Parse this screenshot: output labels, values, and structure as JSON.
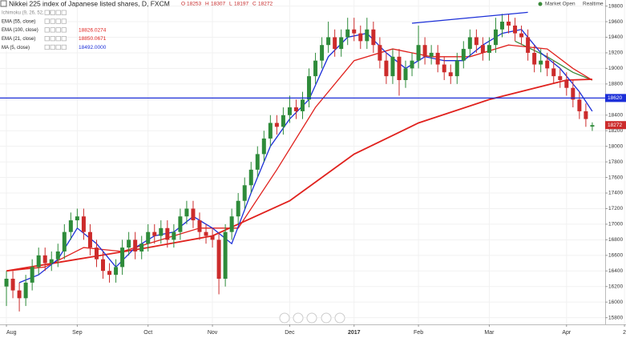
{
  "chart_data": {
    "type": "candlestick",
    "title": "Nikkei 225 index of Japanese listed shares, D, FXCM",
    "ohlc_prefixes": [
      "O",
      "H",
      "L",
      "C"
    ],
    "status": [
      "Market Open",
      "Realtime"
    ],
    "legend_only": [
      "Ichimoku (9, 26, 52, 26)"
    ],
    "up_color": "#2e8b3a",
    "down_color": "#cc2b2b",
    "grid": true,
    "xlim": [
      -1,
      93
    ],
    "ylim": [
      15714,
      19878
    ],
    "yticks": [
      15800,
      16000,
      16200,
      16400,
      16600,
      16800,
      17000,
      17200,
      17400,
      17600,
      17800,
      18000,
      18200,
      18400,
      18600,
      18800,
      19000,
      19200,
      19400,
      19600,
      19800
    ],
    "xticks": [
      {
        "value": 0,
        "label": "Aug"
      },
      {
        "value": 11,
        "label": "Sep"
      },
      {
        "value": 22,
        "label": "Oct"
      },
      {
        "value": 32,
        "label": "Nov"
      },
      {
        "value": 44,
        "label": "Dec"
      },
      {
        "value": 54,
        "label": "2017"
      },
      {
        "value": 64,
        "label": "Feb"
      },
      {
        "value": 75,
        "label": "Mar"
      },
      {
        "value": 87,
        "label": "Apr"
      },
      {
        "value": 96,
        "label": "2"
      }
    ],
    "open": [
      16200,
      16300,
      16150,
      16050,
      16250,
      16450,
      16600,
      16500,
      16550,
      16650,
      16900,
      17050,
      17100,
      16900,
      16700,
      16550,
      16400,
      16350,
      16450,
      16700,
      16800,
      16650,
      16750,
      16900,
      16850,
      16950,
      16800,
      16900,
      17100,
      17200,
      17050,
      16900,
      16850,
      16800,
      16300,
      16900,
      17100,
      17300,
      17500,
      17700,
      17900,
      18100,
      18300,
      18250,
      18400,
      18500,
      18450,
      18600,
      18900,
      19100,
      19300,
      19400,
      19250,
      19400,
      19500,
      19450,
      19350,
      19500,
      19300,
      19100,
      18900,
      19150,
      18850,
      19000,
      19100,
      19300,
      19150,
      19200,
      19050,
      18950,
      18900,
      19100,
      19250,
      19400,
      19300,
      19200,
      19300,
      19500,
      19600,
      19550,
      19450,
      19400,
      19200,
      19050,
      19100,
      19000,
      18900,
      18850,
      18750,
      18600,
      18450,
      18253
    ],
    "high": [
      16400,
      16400,
      16250,
      16350,
      16550,
      16700,
      16700,
      16650,
      16750,
      17000,
      17150,
      17200,
      17200,
      17000,
      16800,
      16650,
      16500,
      16550,
      16800,
      16900,
      16900,
      16850,
      17000,
      17000,
      17050,
      17050,
      17000,
      17200,
      17300,
      17300,
      17150,
      17000,
      16950,
      16900,
      17000,
      17200,
      17400,
      17600,
      17800,
      18000,
      18200,
      18400,
      18400,
      18500,
      18650,
      18600,
      18700,
      19000,
      19200,
      19400,
      19600,
      19500,
      19500,
      19650,
      19650,
      19550,
      19650,
      19600,
      19400,
      19200,
      19250,
      19250,
      19100,
      19200,
      19550,
      19400,
      19300,
      19300,
      19150,
      19050,
      19200,
      19350,
      19500,
      19500,
      19400,
      19400,
      19650,
      19700,
      19700,
      19650,
      19550,
      19500,
      19300,
      19250,
      19200,
      19100,
      19000,
      18950,
      18850,
      18700,
      18550,
      18307
    ],
    "low": [
      15950,
      16050,
      15880,
      15950,
      16150,
      16350,
      16400,
      16400,
      16450,
      16550,
      16800,
      16950,
      16800,
      16600,
      16450,
      16300,
      16250,
      16250,
      16350,
      16600,
      16550,
      16550,
      16650,
      16750,
      16750,
      16700,
      16700,
      16800,
      17000,
      16950,
      16800,
      16750,
      16700,
      16100,
      16200,
      16800,
      17000,
      17200,
      17400,
      17600,
      17800,
      18000,
      18150,
      18150,
      18300,
      18350,
      18350,
      18500,
      18800,
      19000,
      19200,
      19150,
      19150,
      19300,
      19350,
      19250,
      19250,
      19200,
      19000,
      18800,
      18800,
      18650,
      18750,
      18900,
      19000,
      19050,
      19050,
      18950,
      18850,
      18800,
      18800,
      19000,
      19150,
      19200,
      19100,
      19100,
      19200,
      19400,
      19450,
      19350,
      19300,
      19100,
      18950,
      18950,
      18900,
      18800,
      18750,
      18650,
      18500,
      18350,
      18250,
      18197
    ],
    "close": [
      16300,
      16150,
      16050,
      16250,
      16450,
      16600,
      16500,
      16550,
      16650,
      16900,
      17050,
      17100,
      16900,
      16700,
      16550,
      16400,
      16350,
      16450,
      16700,
      16800,
      16650,
      16750,
      16900,
      16850,
      16950,
      16800,
      16900,
      17100,
      17200,
      17050,
      16900,
      16850,
      16800,
      16300,
      16900,
      17100,
      17300,
      17500,
      17700,
      17900,
      18100,
      18300,
      18250,
      18400,
      18500,
      18450,
      18600,
      18900,
      19100,
      19300,
      19400,
      19250,
      19400,
      19500,
      19450,
      19350,
      19500,
      19300,
      19100,
      18900,
      19150,
      18850,
      19000,
      19100,
      19300,
      19150,
      19200,
      19050,
      18950,
      18900,
      19100,
      19250,
      19400,
      19300,
      19200,
      19300,
      19500,
      19600,
      19550,
      19450,
      19400,
      19200,
      19050,
      19100,
      19000,
      18900,
      18850,
      18750,
      18600,
      18450,
      18350,
      18272
    ],
    "series": [
      {
        "name": "EMA (55, close)",
        "color": "#3a8a3a",
        "x": [
          79,
          84,
          88,
          91
        ],
        "values": [
          19350,
          19150,
          18950,
          18850
        ]
      },
      {
        "name": "EMA (100, close)",
        "color": "#e0211d",
        "value_label": "18826.0274",
        "x": [
          0,
          11,
          22,
          32,
          44,
          54,
          64,
          75,
          87,
          91
        ],
        "values": [
          16400,
          16550,
          16700,
          16850,
          17300,
          17900,
          18300,
          18600,
          18850,
          18860
        ]
      },
      {
        "name": "EMA (21, close)",
        "color": "#e0211d",
        "value_label": "18850.0671",
        "x": [
          0,
          6,
          12,
          18,
          24,
          30,
          36,
          42,
          48,
          54,
          60,
          66,
          72,
          78,
          84,
          88,
          91
        ],
        "values": [
          16400,
          16450,
          16700,
          16650,
          16800,
          16950,
          16950,
          17700,
          18500,
          19100,
          19250,
          19150,
          19150,
          19300,
          19250,
          19000,
          18850
        ]
      },
      {
        "name": "MA (5, close)",
        "color": "#1c2fd8",
        "value_label": "18492.0000",
        "x": [
          2,
          5,
          8,
          11,
          14,
          17,
          20,
          23,
          26,
          29,
          32,
          35,
          38,
          41,
          44,
          47,
          50,
          53,
          56,
          59,
          62,
          65,
          68,
          71,
          74,
          77,
          80,
          83,
          86,
          89,
          91
        ],
        "values": [
          16250,
          16350,
          16550,
          16950,
          16750,
          16450,
          16700,
          16850,
          16900,
          17100,
          16950,
          16750,
          17400,
          18000,
          18350,
          18600,
          19150,
          19400,
          19450,
          19200,
          19000,
          19150,
          19100,
          19100,
          19300,
          19450,
          19500,
          19200,
          19000,
          18700,
          18450
        ]
      }
    ],
    "trendlines": [
      {
        "color": "#1c2fd8",
        "x": [
          63,
          81
        ],
        "values": [
          19580,
          19720
        ]
      }
    ],
    "hline": {
      "value": 18620,
      "color": "#1c2fd8"
    }
  }
}
